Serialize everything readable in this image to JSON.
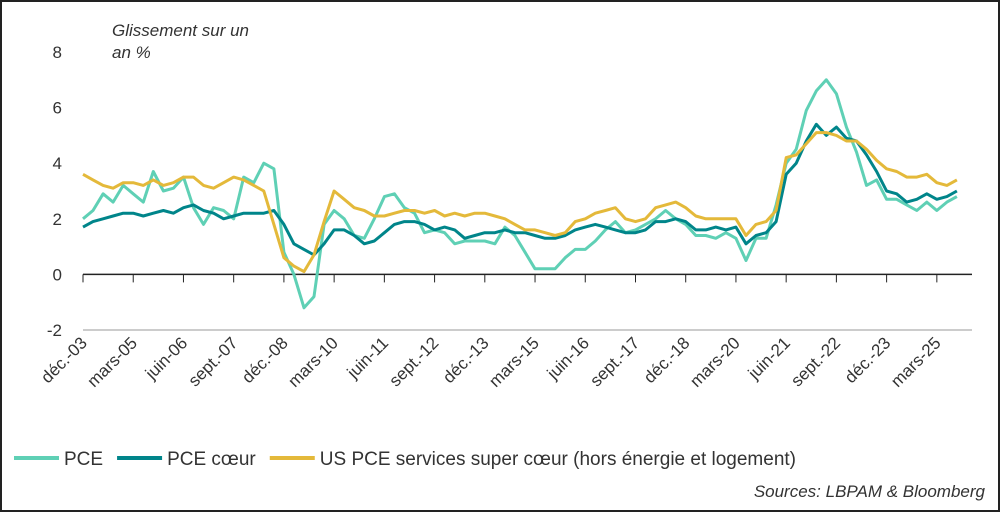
{
  "chart_data": {
    "type": "line",
    "ylabel": "Glissement sur un an %",
    "source": "Sources: LBPAM & Bloomberg",
    "ylim": [
      -2,
      8
    ],
    "yticks": [
      -2,
      0,
      2,
      4,
      6,
      8
    ],
    "legend": "bottom",
    "categories": [
      "déc.-03",
      null,
      null,
      null,
      null,
      "mars-05",
      null,
      null,
      null,
      null,
      "juin-06",
      null,
      null,
      null,
      null,
      "sept.-07",
      null,
      null,
      null,
      null,
      "déc.-08",
      null,
      null,
      null,
      null,
      "mars-10",
      null,
      null,
      null,
      null,
      "juin-11",
      null,
      null,
      null,
      null,
      "sept.-12",
      null,
      null,
      null,
      null,
      "déc.-13",
      null,
      null,
      null,
      null,
      "mars-15",
      null,
      null,
      null,
      null,
      "juin-16",
      null,
      null,
      null,
      null,
      "sept.-17",
      null,
      null,
      null,
      null,
      "déc.-18",
      null,
      null,
      null,
      null,
      "mars-20",
      null,
      null,
      null,
      null,
      "juin-21",
      null,
      null,
      null,
      null,
      "sept.-22",
      null,
      null,
      null,
      null,
      "déc.-23",
      null,
      null,
      null,
      null,
      "mars-25",
      null,
      null
    ],
    "series": [
      {
        "name": "PCE",
        "color": "#5fd0b5",
        "values": [
          2.0,
          2.3,
          2.9,
          2.6,
          3.2,
          2.9,
          2.6,
          3.7,
          3.0,
          3.1,
          3.5,
          2.4,
          1.8,
          2.4,
          2.3,
          2.0,
          3.5,
          3.3,
          4.0,
          3.8,
          0.8,
          0.0,
          -1.2,
          -0.8,
          1.8,
          2.3,
          2.0,
          1.4,
          1.3,
          2.0,
          2.8,
          2.9,
          2.4,
          2.2,
          1.5,
          1.6,
          1.5,
          1.1,
          1.2,
          1.2,
          1.2,
          1.1,
          1.7,
          1.4,
          0.8,
          0.2,
          0.2,
          0.2,
          0.6,
          0.9,
          0.9,
          1.2,
          1.6,
          1.9,
          1.5,
          1.6,
          1.8,
          2.0,
          2.3,
          2.0,
          1.8,
          1.4,
          1.4,
          1.3,
          1.5,
          1.3,
          0.5,
          1.3,
          1.3,
          2.5,
          4.0,
          4.5,
          5.9,
          6.6,
          7.0,
          6.5,
          5.3,
          4.4,
          3.2,
          3.4,
          2.7,
          2.7,
          2.5,
          2.3,
          2.6,
          2.3,
          2.6,
          2.8
        ]
      },
      {
        "name": "PCE cœur",
        "color": "#00858a",
        "values": [
          1.7,
          1.9,
          2.0,
          2.1,
          2.2,
          2.2,
          2.1,
          2.2,
          2.3,
          2.2,
          2.4,
          2.5,
          2.3,
          2.2,
          2.0,
          2.1,
          2.2,
          2.2,
          2.2,
          2.3,
          1.8,
          1.1,
          0.9,
          0.7,
          1.1,
          1.6,
          1.6,
          1.4,
          1.1,
          1.2,
          1.5,
          1.8,
          1.9,
          1.9,
          1.8,
          1.6,
          1.7,
          1.6,
          1.3,
          1.4,
          1.5,
          1.5,
          1.6,
          1.5,
          1.5,
          1.4,
          1.3,
          1.3,
          1.4,
          1.6,
          1.7,
          1.8,
          1.7,
          1.6,
          1.5,
          1.5,
          1.6,
          1.9,
          1.9,
          2.0,
          1.9,
          1.6,
          1.6,
          1.7,
          1.6,
          1.7,
          1.1,
          1.4,
          1.5,
          1.9,
          3.6,
          4.0,
          4.8,
          5.4,
          5.0,
          5.3,
          4.9,
          4.8,
          4.3,
          3.7,
          3.0,
          2.9,
          2.6,
          2.7,
          2.9,
          2.7,
          2.8,
          3.0
        ]
      },
      {
        "name": "US PCE services super cœur (hors énergie et logement)",
        "color": "#e4b93a",
        "values": [
          3.6,
          3.4,
          3.2,
          3.1,
          3.3,
          3.3,
          3.2,
          3.4,
          3.2,
          3.3,
          3.5,
          3.5,
          3.2,
          3.1,
          3.3,
          3.5,
          3.4,
          3.2,
          3.0,
          1.8,
          0.6,
          0.3,
          0.1,
          0.7,
          1.9,
          3.0,
          2.7,
          2.4,
          2.3,
          2.1,
          2.1,
          2.2,
          2.3,
          2.3,
          2.2,
          2.3,
          2.1,
          2.2,
          2.1,
          2.2,
          2.2,
          2.1,
          2.0,
          1.8,
          1.6,
          1.6,
          1.5,
          1.4,
          1.5,
          1.9,
          2.0,
          2.2,
          2.3,
          2.4,
          2.0,
          1.9,
          2.0,
          2.4,
          2.5,
          2.6,
          2.4,
          2.1,
          2.0,
          2.0,
          2.0,
          2.0,
          1.4,
          1.8,
          1.9,
          2.3,
          4.2,
          4.3,
          4.7,
          5.1,
          5.1,
          5.0,
          4.8,
          4.8,
          4.5,
          4.1,
          3.8,
          3.7,
          3.5,
          3.5,
          3.6,
          3.3,
          3.2,
          3.4
        ]
      }
    ]
  }
}
